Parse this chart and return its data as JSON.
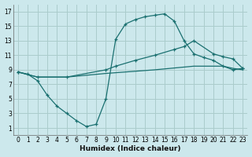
{
  "xlabel": "Humidex (Indice chaleur)",
  "bg_color": "#cce8ec",
  "grid_color": "#aacccc",
  "line_color": "#1a7070",
  "xticks": [
    0,
    1,
    2,
    3,
    4,
    5,
    6,
    7,
    8,
    9,
    10,
    11,
    12,
    13,
    14,
    15,
    16,
    17,
    18,
    19,
    20,
    21,
    22,
    23
  ],
  "yticks": [
    1,
    3,
    5,
    7,
    9,
    11,
    13,
    15,
    17
  ],
  "curve1_x": [
    0,
    1,
    2,
    3,
    4,
    5,
    6,
    7,
    8,
    9,
    10,
    11,
    12,
    13,
    14,
    15,
    16,
    17,
    18,
    19,
    20,
    21,
    22,
    23
  ],
  "curve1_y": [
    8.7,
    8.4,
    7.5,
    5.5,
    4.0,
    3.0,
    2.0,
    1.2,
    1.5,
    5.0,
    13.2,
    15.3,
    15.9,
    16.3,
    16.5,
    16.7,
    15.7,
    13.0,
    11.2,
    10.7,
    10.3,
    9.5,
    9.0,
    9.2
  ],
  "curve2_x": [
    0,
    2,
    5,
    9,
    10,
    12,
    14,
    16,
    17,
    18,
    20,
    21,
    22,
    23
  ],
  "curve2_y": [
    8.7,
    8.0,
    8.0,
    9.0,
    9.5,
    10.3,
    11.0,
    11.8,
    12.2,
    13.0,
    11.2,
    10.8,
    10.5,
    9.2
  ],
  "curve3_x": [
    0,
    2,
    5,
    9,
    14,
    18,
    21,
    22,
    23
  ],
  "curve3_y": [
    8.7,
    8.0,
    8.0,
    8.5,
    9.0,
    9.5,
    9.5,
    9.2,
    9.0
  ]
}
